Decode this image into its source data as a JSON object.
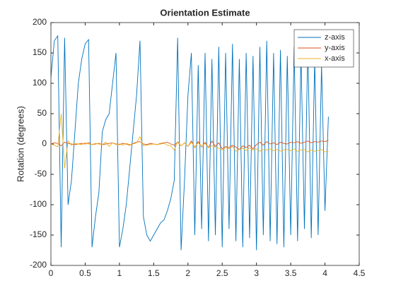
{
  "chart_data": {
    "type": "line",
    "title": "Orientation Estimate",
    "y_label": "Rotation (degrees)",
    "x": [
      0,
      0.05,
      0.1,
      0.15,
      0.2,
      0.25,
      0.3,
      0.35,
      0.4,
      0.45,
      0.5,
      0.55,
      0.6,
      0.65,
      0.7,
      0.75,
      0.8,
      0.85,
      0.9,
      0.95,
      1,
      1.05,
      1.1,
      1.15,
      1.2,
      1.25,
      1.3,
      1.35,
      1.4,
      1.45,
      1.5,
      1.55,
      1.6,
      1.65,
      1.7,
      1.75,
      1.8,
      1.85,
      1.9,
      1.95,
      2,
      2.05,
      2.1,
      2.15,
      2.2,
      2.25,
      2.3,
      2.35,
      2.4,
      2.45,
      2.5,
      2.55,
      2.6,
      2.65,
      2.7,
      2.75,
      2.8,
      2.85,
      2.9,
      2.95,
      3,
      3.05,
      3.1,
      3.15,
      3.2,
      3.25,
      3.3,
      3.35,
      3.4,
      3.45,
      3.5,
      3.55,
      3.6,
      3.65,
      3.7,
      3.75,
      3.8,
      3.85,
      3.9,
      3.95,
      4,
      4.05
    ],
    "series": [
      {
        "name": "z-axis",
        "color": "#0072bd",
        "values": [
          110,
          170,
          178,
          -170,
          175,
          -100,
          -60,
          20,
          100,
          140,
          165,
          172,
          -170,
          -120,
          -80,
          20,
          40,
          50,
          100,
          150,
          -170,
          -140,
          -100,
          -40,
          20,
          80,
          170,
          -120,
          -150,
          -160,
          -150,
          -140,
          -130,
          -125,
          -110,
          -90,
          -60,
          175,
          -175,
          -60,
          80,
          150,
          -150,
          130,
          -140,
          150,
          -160,
          140,
          -150,
          160,
          -170,
          150,
          -140,
          165,
          -160,
          140,
          -170,
          150,
          -155,
          145,
          -175,
          160,
          -150,
          170,
          -160,
          150,
          -165,
          155,
          -170,
          145,
          -150,
          160,
          -160,
          150,
          -140,
          165,
          -155,
          140,
          -150,
          130,
          -110,
          45
        ]
      },
      {
        "name": "y-axis",
        "color": "#d95319",
        "values": [
          0,
          2,
          1,
          -3,
          3,
          1,
          0,
          -1,
          0,
          1,
          0,
          2,
          -1,
          0,
          1,
          -1,
          0,
          1,
          2,
          0,
          -1,
          1,
          0,
          -2,
          1,
          3,
          4,
          0,
          -1,
          1,
          0,
          -1,
          1,
          2,
          3,
          0,
          -2,
          3,
          -3,
          2,
          -4,
          5,
          -6,
          4,
          -5,
          3,
          -6,
          5,
          -4,
          2,
          -8,
          -4,
          -6,
          -2,
          -5,
          -9,
          -3,
          -6,
          -2,
          -8,
          -1,
          3,
          -2,
          4,
          0,
          2,
          -1,
          3,
          1,
          0,
          3,
          2,
          4,
          1,
          3,
          5,
          2,
          4,
          3,
          5,
          4,
          6
        ]
      },
      {
        "name": "x-axis",
        "color": "#edb120",
        "values": [
          0,
          -2,
          -5,
          50,
          -40,
          5,
          -2,
          1,
          0,
          -1,
          2,
          0,
          -1,
          1,
          0,
          -1,
          3,
          -4,
          2,
          -1,
          0,
          -2,
          1,
          -1,
          0,
          2,
          12,
          -3,
          -2,
          -1,
          0,
          -1,
          0,
          1,
          -2,
          -3,
          -10,
          4,
          -3,
          2,
          -4,
          3,
          -5,
          2,
          -4,
          1,
          -6,
          -3,
          -5,
          -7,
          -10,
          -6,
          -8,
          -4,
          -12,
          -9,
          -7,
          -11,
          -6,
          -10,
          -8,
          -12,
          -9,
          -10,
          -8,
          -11,
          -9,
          -12,
          -10,
          -9,
          -11,
          -8,
          -12,
          -10,
          -9,
          -13,
          -10,
          -12,
          -11,
          -9,
          -13,
          -12
        ]
      }
    ],
    "xlim": [
      0,
      4.5
    ],
    "xticks": [
      0,
      0.5,
      1,
      1.5,
      2,
      2.5,
      3,
      3.5,
      4,
      4.5
    ],
    "ylim": [
      -200,
      200
    ],
    "yticks": [
      -200,
      -150,
      -100,
      -50,
      0,
      50,
      100,
      150,
      200
    ],
    "grid": false,
    "legend": "upper right"
  }
}
